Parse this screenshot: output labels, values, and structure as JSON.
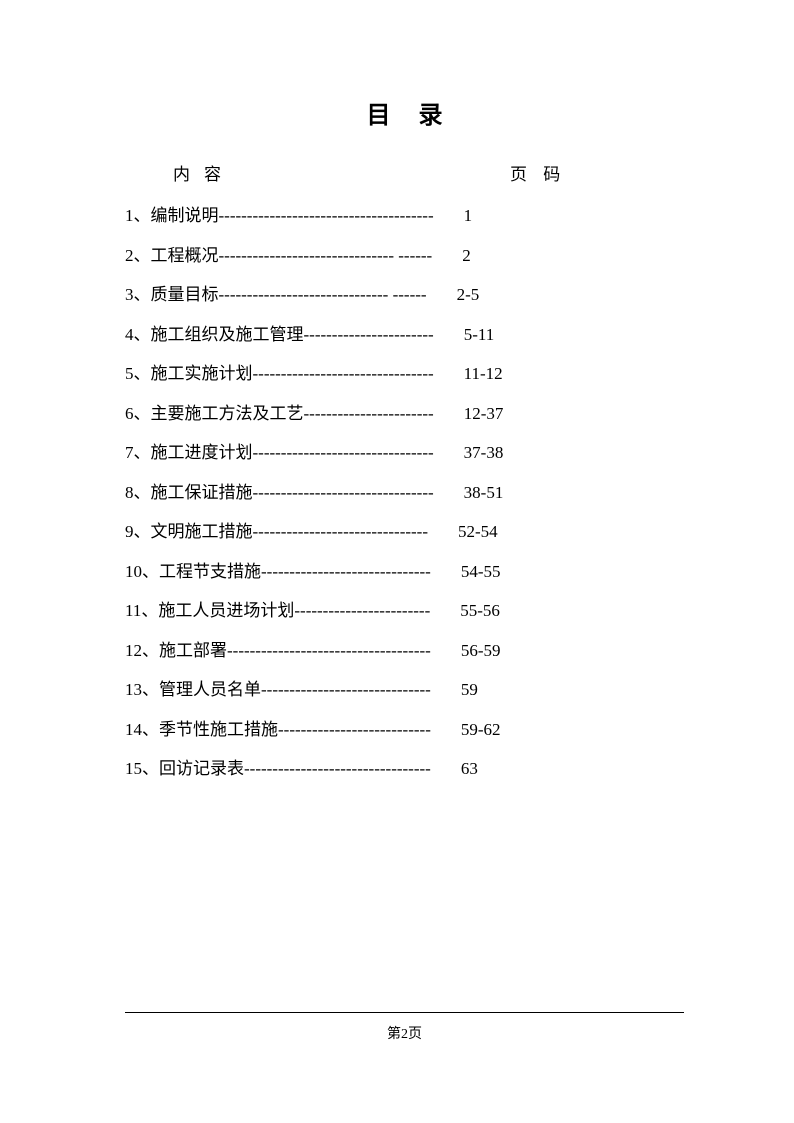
{
  "title": "目录",
  "header": {
    "content_label": "内容",
    "page_label": "页 码"
  },
  "entries": [
    {
      "num": "1、",
      "label": "编制说明",
      "dashes": "--------------------------------------",
      "page": "1"
    },
    {
      "num": "2、",
      "label": "工程概况",
      "dashes": "-------------------------------  ------",
      "page": "2"
    },
    {
      "num": "3、",
      "label": "质量目标",
      "dashes": "------------------------------  ------",
      "page": "2-5"
    },
    {
      "num": "4、",
      "label": "施工组织及施工管理",
      "dashes": "-----------------------",
      "page": "5-11"
    },
    {
      "num": "5、",
      "label": "施工实施计划",
      "dashes": "--------------------------------",
      "page": "11-12"
    },
    {
      "num": "6、",
      "label": "主要施工方法及工艺",
      "dashes": "-----------------------",
      "page": "12-37"
    },
    {
      "num": "7、",
      "label": "施工进度计划",
      "dashes": "--------------------------------",
      "page": "37-38"
    },
    {
      "num": "8、",
      "label": "施工保证措施",
      "dashes": "--------------------------------",
      "page": "38-51"
    },
    {
      "num": "9、",
      "label": "文明施工措施 ",
      "dashes": "-------------------------------",
      "page": "52-54"
    },
    {
      "num": "10、",
      "label": "工程节支措施",
      "dashes": "------------------------------",
      "page": "54-55"
    },
    {
      "num": "11、",
      "label": "施工人员进场计划",
      "dashes": "------------------------",
      "page": "55-56"
    },
    {
      "num": "12、",
      "label": "施工部署",
      "dashes": "------------------------------------",
      "page": "56-59"
    },
    {
      "num": "13、",
      "label": "管理人员名单",
      "dashes": "------------------------------",
      "page": "59"
    },
    {
      "num": "14、",
      "label": "季节性施工措施",
      "dashes": "---------------------------",
      "page": "59-62"
    },
    {
      "num": "15、",
      "label": "回访记录表",
      "dashes": "---------------------------------",
      "page": "63"
    }
  ],
  "footer": {
    "page_text": "第2页"
  },
  "style": {
    "background_color": "#ffffff",
    "text_color": "#000000",
    "title_fontsize": 24,
    "body_fontsize": 17,
    "footer_fontsize": 14
  }
}
